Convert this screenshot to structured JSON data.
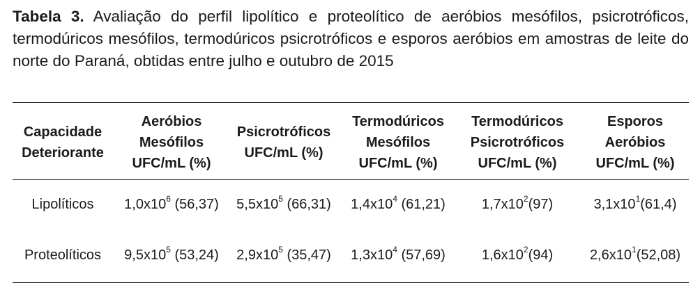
{
  "caption": {
    "label": "Tabela 3.",
    "text": " Avaliação do perfil lipolítico e proteolítico de aeróbios mesófilos, psicrotróficos, termodúricos mesófilos, termodúricos psicrotróficos e esporos aeróbios em amostras de leite do norte do Paraná, obtidas entre julho e outubro de 2015"
  },
  "table": {
    "headers": [
      [
        "Capacidade",
        "Deteriorante"
      ],
      [
        "Aeróbios",
        "Mesófilos",
        "UFC/mL (%)"
      ],
      [
        "Psicrotróficos",
        "UFC/mL (%)"
      ],
      [
        "Termodúricos",
        "Mesófilos",
        "UFC/mL (%)"
      ],
      [
        "Termodúricos",
        "Psicrotróficos",
        "UFC/mL (%)"
      ],
      [
        "Esporos",
        "Aeróbios",
        "UFC/mL (%)"
      ]
    ],
    "rows": [
      {
        "label": "Lipolíticos",
        "cells": [
          {
            "base": "1,0x10",
            "exp": "6",
            "pct": " (56,37)"
          },
          {
            "base": "5,5x10",
            "exp": "5",
            "pct": " (66,31)"
          },
          {
            "base": "1,4x10",
            "exp": "4",
            "pct": " (61,21)"
          },
          {
            "base": "1,7x10",
            "exp": "2",
            "pct": "(97)"
          },
          {
            "base": "3,1x10",
            "exp": "1",
            "pct": "(61,4)"
          }
        ]
      },
      {
        "label": "Proteolíticos",
        "cells": [
          {
            "base": "9,5x10",
            "exp": "5",
            "pct": " (53,24)"
          },
          {
            "base": "2,9x10",
            "exp": "5",
            "pct": " (35,47)"
          },
          {
            "base": "1,3x10",
            "exp": "4",
            "pct": " (57,69)"
          },
          {
            "base": "1,6x10",
            "exp": "2",
            "pct": "(94)"
          },
          {
            "base": "2,6x10",
            "exp": "1",
            "pct": "(52,08)"
          }
        ]
      }
    ]
  }
}
